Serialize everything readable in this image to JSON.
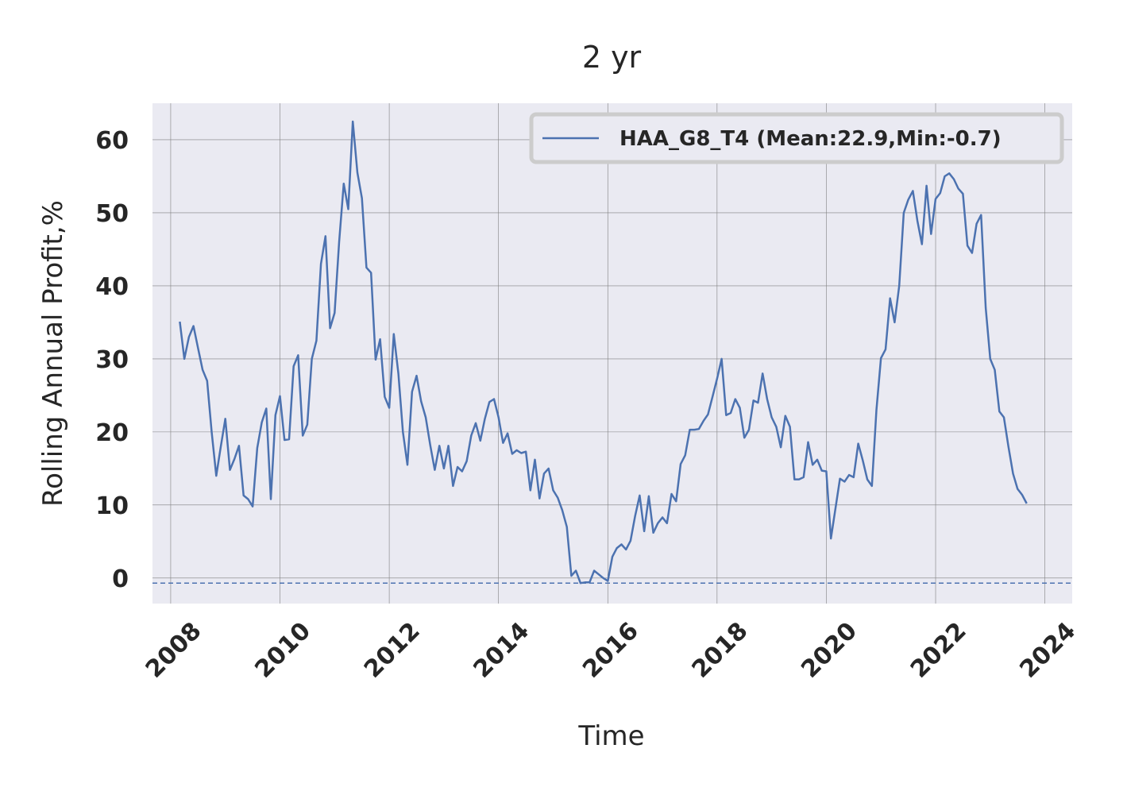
{
  "chart_data": {
    "type": "line",
    "title": "2 yr",
    "xlabel": "Time",
    "ylabel": "Rolling Annual Profit,%",
    "xlim": [
      "2007-09-01",
      "2024-07-01"
    ],
    "ylim": [
      -3.5,
      65
    ],
    "x_ticks": [
      "2008",
      "2010",
      "2012",
      "2014",
      "2016",
      "2018",
      "2020",
      "2022",
      "2024"
    ],
    "y_ticks": [
      "0",
      "10",
      "20",
      "30",
      "40",
      "50",
      "60"
    ],
    "grid": true,
    "legend_position": "top-right",
    "colors": {
      "line": "#4c72b0",
      "background": "#eaeaf2",
      "grid": "#808080"
    },
    "series": [
      {
        "name": "HAA_G8_T4 (Mean:22.9,Min:-0.7)",
        "x": [
          "2008-03",
          "2008-04",
          "2008-05",
          "2008-06",
          "2008-07",
          "2008-08",
          "2008-09",
          "2008-10",
          "2008-11",
          "2008-12",
          "2009-01",
          "2009-02",
          "2009-03",
          "2009-04",
          "2009-05",
          "2009-06",
          "2009-07",
          "2009-08",
          "2009-09",
          "2009-10",
          "2009-11",
          "2009-12",
          "2010-01",
          "2010-02",
          "2010-03",
          "2010-04",
          "2010-05",
          "2010-06",
          "2010-07",
          "2010-08",
          "2010-09",
          "2010-10",
          "2010-11",
          "2010-12",
          "2011-01",
          "2011-02",
          "2011-03",
          "2011-04",
          "2011-05",
          "2011-06",
          "2011-07",
          "2011-08",
          "2011-09",
          "2011-10",
          "2011-11",
          "2011-12",
          "2012-01",
          "2012-02",
          "2012-03",
          "2012-04",
          "2012-05",
          "2012-06",
          "2012-07",
          "2012-08",
          "2012-09",
          "2012-10",
          "2012-11",
          "2012-12",
          "2013-01",
          "2013-02",
          "2013-03",
          "2013-04",
          "2013-05",
          "2013-06",
          "2013-07",
          "2013-08",
          "2013-09",
          "2013-10",
          "2013-11",
          "2013-12",
          "2014-01",
          "2014-02",
          "2014-03",
          "2014-04",
          "2014-05",
          "2014-06",
          "2014-07",
          "2014-08",
          "2014-09",
          "2014-10",
          "2014-11",
          "2014-12",
          "2015-01",
          "2015-02",
          "2015-03",
          "2015-04",
          "2015-05",
          "2015-06",
          "2015-07",
          "2015-08",
          "2015-09",
          "2015-10",
          "2015-11",
          "2015-12",
          "2016-01",
          "2016-02",
          "2016-03",
          "2016-04",
          "2016-05",
          "2016-06",
          "2016-07",
          "2016-08",
          "2016-09",
          "2016-10",
          "2016-11",
          "2016-12",
          "2017-01",
          "2017-02",
          "2017-03",
          "2017-04",
          "2017-05",
          "2017-06",
          "2017-07",
          "2017-08",
          "2017-09",
          "2017-10",
          "2017-11",
          "2017-12",
          "2018-01",
          "2018-02",
          "2018-03",
          "2018-04",
          "2018-05",
          "2018-06",
          "2018-07",
          "2018-08",
          "2018-09",
          "2018-10",
          "2018-11",
          "2018-12",
          "2019-01",
          "2019-02",
          "2019-03",
          "2019-04",
          "2019-05",
          "2019-06",
          "2019-07",
          "2019-08",
          "2019-09",
          "2019-10",
          "2019-11",
          "2019-12",
          "2020-01",
          "2020-02",
          "2020-03",
          "2020-04",
          "2020-05",
          "2020-06",
          "2020-07",
          "2020-08",
          "2020-09",
          "2020-10",
          "2020-11",
          "2020-12",
          "2021-01",
          "2021-02",
          "2021-03",
          "2021-04",
          "2021-05",
          "2021-06",
          "2021-07",
          "2021-08",
          "2021-09",
          "2021-10",
          "2021-11",
          "2021-12",
          "2022-01",
          "2022-02",
          "2022-03",
          "2022-04",
          "2022-05",
          "2022-06",
          "2022-07",
          "2022-08",
          "2022-09",
          "2022-10",
          "2022-11",
          "2022-12",
          "2023-01",
          "2023-02",
          "2023-03",
          "2023-04",
          "2023-05",
          "2023-06",
          "2023-07",
          "2023-08",
          "2023-09"
        ],
        "values": [
          35.1,
          30.0,
          33.0,
          34.5,
          31.5,
          28.5,
          27.0,
          20.0,
          14.0,
          18.0,
          21.8,
          14.8,
          16.3,
          18.1,
          11.3,
          10.8,
          9.8,
          17.8,
          21.3,
          23.2,
          10.8,
          22.3,
          24.9,
          18.9,
          19.0,
          29.0,
          30.5,
          19.5,
          21.0,
          30.0,
          32.5,
          43.0,
          46.8,
          34.2,
          36.3,
          46.0,
          54.0,
          50.5,
          62.5,
          55.5,
          52.0,
          42.5,
          41.8,
          29.9,
          32.7,
          24.8,
          23.3,
          33.4,
          28.0,
          20.0,
          15.5,
          25.5,
          27.7,
          24.2,
          22.0,
          18.2,
          14.8,
          18.1,
          15.0,
          18.1,
          12.6,
          15.2,
          14.6,
          16.0,
          19.5,
          21.2,
          18.8,
          21.8,
          24.1,
          24.5,
          22.0,
          18.5,
          19.8,
          17.0,
          17.5,
          17.1,
          17.3,
          12.0,
          16.2,
          10.9,
          14.3,
          15.0,
          12.0,
          11.0,
          9.3,
          7.0,
          0.3,
          1.0,
          -0.7,
          -0.6,
          -0.6,
          1.0,
          0.5,
          0.0,
          -0.4,
          2.9,
          4.1,
          4.6,
          3.9,
          5.1,
          8.5,
          11.3,
          6.4,
          11.2,
          6.2,
          7.5,
          8.3,
          7.5,
          11.5,
          10.5,
          15.6,
          16.8,
          20.3,
          20.3,
          20.4,
          21.5,
          22.4,
          24.8,
          27.3,
          30.0,
          22.3,
          22.6,
          24.5,
          23.3,
          19.2,
          20.3,
          24.3,
          24.0,
          28.0,
          24.5,
          22.0,
          20.7,
          17.9,
          22.2,
          20.7,
          13.5,
          13.5,
          13.8,
          18.6,
          15.5,
          16.2,
          14.7,
          14.6,
          5.4,
          9.5,
          13.6,
          13.2,
          14.1,
          13.8,
          18.4,
          16.1,
          13.5,
          12.6,
          23.0,
          30.1,
          31.3,
          38.3,
          35.0,
          40.0,
          50.0,
          51.8,
          53.0,
          48.9,
          45.7,
          53.7,
          47.1,
          51.9,
          52.7,
          55.0,
          55.4,
          54.6,
          53.3,
          52.6,
          45.5,
          44.5,
          48.5,
          49.7,
          37.0,
          30.0,
          28.5,
          22.8,
          22.0,
          18.0,
          14.3,
          12.2,
          11.4,
          10.2
        ]
      }
    ],
    "reference_lines": [
      {
        "orientation": "horizontal",
        "y": -0.7,
        "style": "dashed"
      }
    ]
  }
}
